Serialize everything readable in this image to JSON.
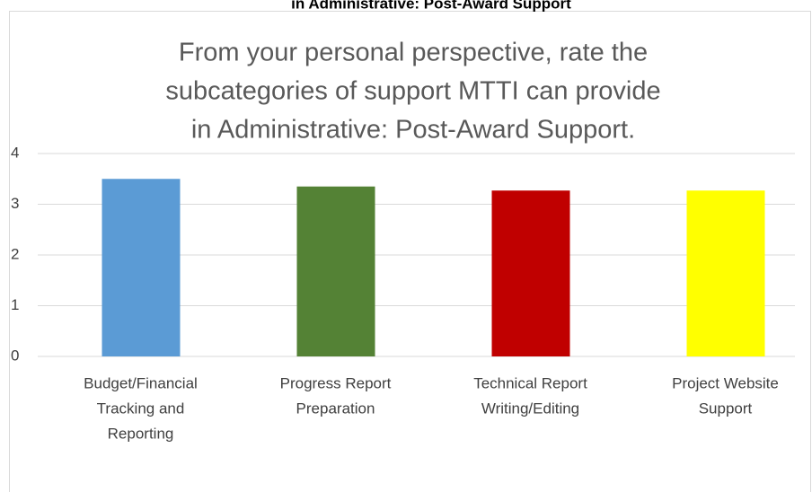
{
  "overlay_title": "in Administrative: Post-Award Support",
  "chart_data": {
    "type": "bar",
    "title": [
      "From your personal perspective, rate the",
      "subcategories of support MTTI can provide",
      "in Administrative: Post-Award Support."
    ],
    "categories": [
      [
        "Budget/Financial",
        "Tracking and",
        "Reporting"
      ],
      [
        "Progress Report",
        "Preparation"
      ],
      [
        "Technical Report",
        "Writing/Editing"
      ],
      [
        "Project Website",
        "Support"
      ]
    ],
    "series": [
      {
        "colors": [
          "#5b9bd5",
          "#548235",
          "#c00000",
          "#ffff00"
        ]
      }
    ],
    "values": [
      3.5,
      3.35,
      3.27,
      3.27
    ],
    "colors": [
      "#5b9bd5",
      "#548235",
      "#c00000",
      "#ffff00"
    ],
    "ylim": [
      0,
      4
    ],
    "yticks": [
      0,
      1,
      2,
      3,
      4
    ],
    "grid": true
  }
}
